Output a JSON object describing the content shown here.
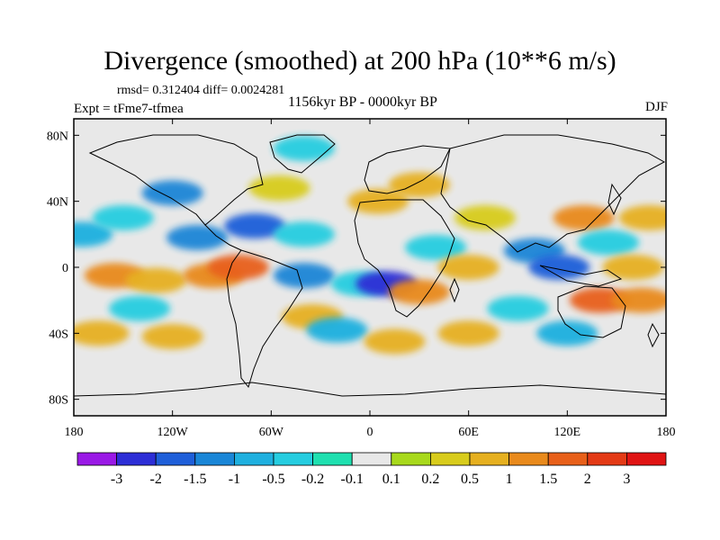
{
  "chart_data": {
    "type": "heatmap",
    "title": "Divergence (smoothed) at 200 hPa (10**6 m/s)",
    "stats_line": "rmsd= 0.312404 diff= 0.0024281",
    "experiment": "Expt = tFme7-tfmea",
    "period": "1156kyr BP - 0000kyr BP",
    "season": "DJF",
    "x_range": [
      -180,
      180
    ],
    "y_range": [
      -90,
      90
    ],
    "x_ticks": [
      {
        "value": -180,
        "label": "180"
      },
      {
        "value": -120,
        "label": "120W"
      },
      {
        "value": -60,
        "label": "60W"
      },
      {
        "value": 0,
        "label": "0"
      },
      {
        "value": 60,
        "label": "60E"
      },
      {
        "value": 120,
        "label": "120E"
      },
      {
        "value": 180,
        "label": "180"
      }
    ],
    "y_ticks": [
      {
        "value": 80,
        "label": "80N"
      },
      {
        "value": 40,
        "label": "40N"
      },
      {
        "value": 0,
        "label": "0"
      },
      {
        "value": -40,
        "label": "40S"
      },
      {
        "value": -80,
        "label": "80S"
      }
    ],
    "colorbar": {
      "colors": [
        "#9a19e6",
        "#2d2ed6",
        "#1f5fd9",
        "#1a86d7",
        "#1fb0df",
        "#26cde0",
        "#1fe0b0",
        "#e8e8e8",
        "#a8d91c",
        "#d8cc1c",
        "#e6b020",
        "#e98a1c",
        "#e8601a",
        "#e43a16",
        "#e01414"
      ],
      "labels": [
        "-3",
        "-2",
        "-1.5",
        "-1",
        "-0.5",
        "-0.2",
        "-0.1",
        "0.1",
        "0.2",
        "0.5",
        "1",
        "1.5",
        "2",
        "3"
      ]
    },
    "features": [
      {
        "lon": -175,
        "lat": 20,
        "level": 4
      },
      {
        "lon": -150,
        "lat": 30,
        "level": 5
      },
      {
        "lon": -155,
        "lat": -5,
        "level": 11
      },
      {
        "lon": -130,
        "lat": -8,
        "level": 10
      },
      {
        "lon": -95,
        "lat": -5,
        "level": 11
      },
      {
        "lon": -80,
        "lat": 0,
        "level": 12
      },
      {
        "lon": -165,
        "lat": -40,
        "level": 10
      },
      {
        "lon": -120,
        "lat": -42,
        "level": 10
      },
      {
        "lon": -140,
        "lat": -25,
        "level": 5
      },
      {
        "lon": -105,
        "lat": 18,
        "level": 3
      },
      {
        "lon": -120,
        "lat": 45,
        "level": 3
      },
      {
        "lon": -70,
        "lat": 25,
        "level": 2
      },
      {
        "lon": -40,
        "lat": 20,
        "level": 5
      },
      {
        "lon": -55,
        "lat": 48,
        "level": 9
      },
      {
        "lon": -40,
        "lat": 72,
        "level": 5
      },
      {
        "lon": -40,
        "lat": -5,
        "level": 3
      },
      {
        "lon": -35,
        "lat": -30,
        "level": 10
      },
      {
        "lon": -5,
        "lat": -10,
        "level": 5
      },
      {
        "lon": 10,
        "lat": -10,
        "level": 1
      },
      {
        "lon": -20,
        "lat": -38,
        "level": 4
      },
      {
        "lon": 5,
        "lat": 40,
        "level": 10
      },
      {
        "lon": 40,
        "lat": 12,
        "level": 5
      },
      {
        "lon": 30,
        "lat": -15,
        "level": 11
      },
      {
        "lon": 30,
        "lat": 50,
        "level": 10
      },
      {
        "lon": 60,
        "lat": 0,
        "level": 10
      },
      {
        "lon": 70,
        "lat": 30,
        "level": 9
      },
      {
        "lon": 100,
        "lat": 10,
        "level": 3
      },
      {
        "lon": 115,
        "lat": 0,
        "level": 2
      },
      {
        "lon": 130,
        "lat": 30,
        "level": 11
      },
      {
        "lon": 145,
        "lat": 15,
        "level": 5
      },
      {
        "lon": 160,
        "lat": 0,
        "level": 10
      },
      {
        "lon": 170,
        "lat": 30,
        "level": 10
      },
      {
        "lon": 140,
        "lat": -20,
        "level": 12
      },
      {
        "lon": 165,
        "lat": -20,
        "level": 11
      },
      {
        "lon": 90,
        "lat": -25,
        "level": 5
      },
      {
        "lon": 120,
        "lat": -40,
        "level": 4
      },
      {
        "lon": 60,
        "lat": -40,
        "level": 10
      },
      {
        "lon": 15,
        "lat": -45,
        "level": 10
      }
    ]
  }
}
